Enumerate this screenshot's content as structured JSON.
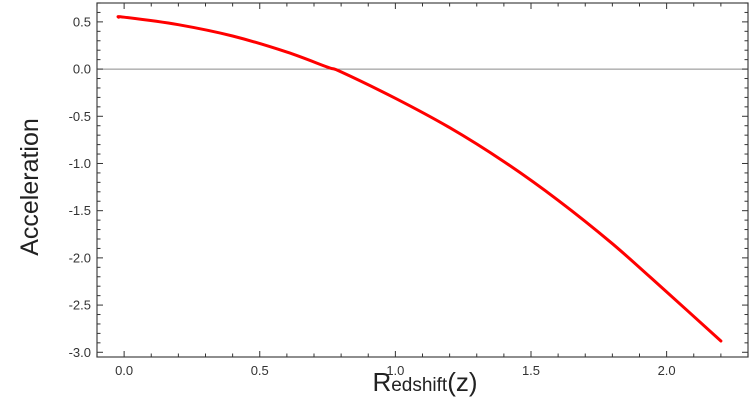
{
  "chart_data": {
    "type": "line",
    "title": "",
    "xlabel": "Redshift(z)",
    "ylabel": "Acceleration",
    "xlim": [
      -0.1,
      2.3
    ],
    "ylim": [
      -3.05,
      0.7
    ],
    "x_ticks": [
      "0.0",
      "0.5",
      "1.0",
      "1.5",
      "2.0"
    ],
    "y_ticks": [
      "0.5",
      "0.0",
      "-0.5",
      "-1.0",
      "-1.5",
      "-2.0",
      "-2.5",
      "-3.0"
    ],
    "x_tick_values": [
      0.0,
      0.5,
      1.0,
      1.5,
      2.0
    ],
    "y_tick_values": [
      0.5,
      0.0,
      -0.5,
      -1.0,
      -1.5,
      -2.0,
      -2.5,
      -3.0
    ],
    "grid": false,
    "reference_line_y": 0.0,
    "series": [
      {
        "color": "#ff0000",
        "x": [
          -0.02,
          0.0,
          0.2,
          0.4,
          0.6,
          0.75,
          0.8,
          1.0,
          1.2,
          1.4,
          1.6,
          1.8,
          2.0,
          2.2
        ],
        "y": [
          0.55,
          0.55,
          0.47,
          0.35,
          0.18,
          0.02,
          -0.03,
          -0.31,
          -0.62,
          -0.98,
          -1.39,
          -1.85,
          -2.36,
          -2.88
        ]
      }
    ]
  }
}
